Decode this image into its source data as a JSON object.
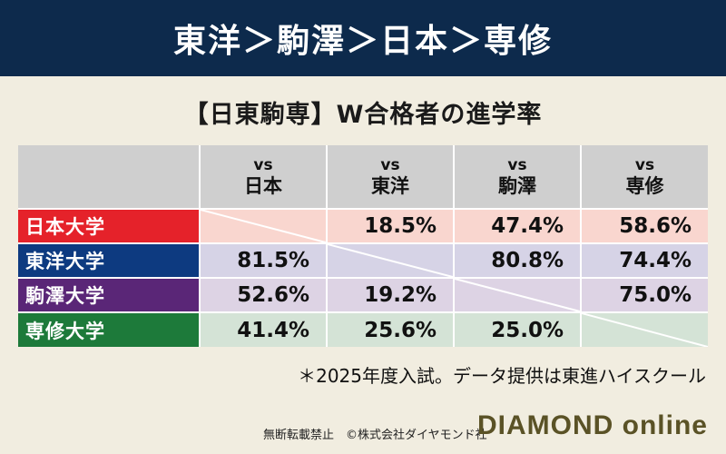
{
  "banner": {
    "title": "東洋＞駒澤＞日本＞専修"
  },
  "subtitle": "【日東駒専】W合格者の進学率",
  "table": {
    "vs_label": "vs",
    "columns": [
      "日本",
      "東洋",
      "駒澤",
      "専修"
    ],
    "rows": [
      {
        "label": "日本大学",
        "color": "#e5222a",
        "tint": "#f9d6cf",
        "values": [
          "",
          "18.5%",
          "47.4%",
          "58.6%"
        ]
      },
      {
        "label": "東洋大学",
        "color": "#0d3a80",
        "tint": "#d6d3e6",
        "values": [
          "81.5%",
          "",
          "80.8%",
          "74.4%"
        ]
      },
      {
        "label": "駒澤大学",
        "color": "#5a2677",
        "tint": "#ddd3e4",
        "values": [
          "52.6%",
          "19.2%",
          "",
          "75.0%"
        ]
      },
      {
        "label": "専修大学",
        "color": "#1d7a3a",
        "tint": "#d4e3d6",
        "values": [
          "41.4%",
          "25.6%",
          "25.0%",
          ""
        ]
      }
    ]
  },
  "note": "＊2025年度入試。データ提供は東進ハイスクール",
  "footer": {
    "rights": "無断転載禁止　©株式会社ダイヤモンド社",
    "brand": "DIAMOND online"
  }
}
